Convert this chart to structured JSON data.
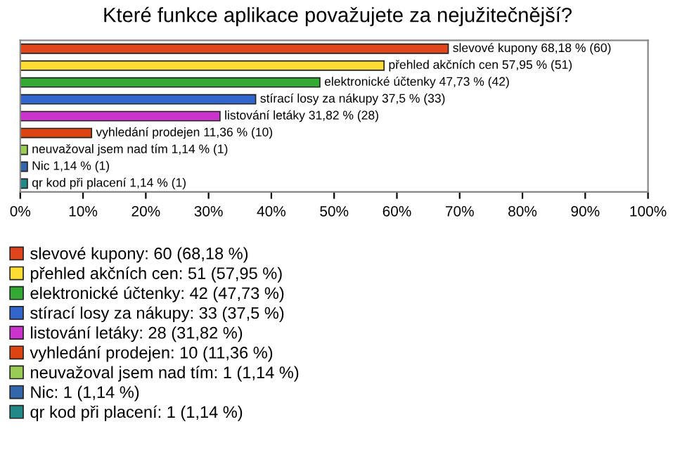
{
  "chart_data": {
    "type": "bar",
    "orientation": "horizontal",
    "title": "Které funkce aplikace považujete za nejužitečnější?",
    "categories": [
      null,
      null,
      null,
      null,
      null,
      null,
      null,
      null,
      null
    ],
    "series": [
      {
        "name": "slevové kupony: 60 (68,18 %)",
        "color": "#e0451c",
        "values": [
          68.18,
          null,
          null,
          null,
          null,
          null,
          null,
          null,
          null
        ],
        "value_labels": [
          "slevové kupony 68,18 % (60)",
          null,
          null,
          null,
          null,
          null,
          null,
          null,
          null
        ]
      },
      {
        "name": "přehled akčních cen: 51 (57,95 %)",
        "color": "#ffdd33",
        "values": [
          null,
          57.95,
          null,
          null,
          null,
          null,
          null,
          null,
          null
        ],
        "value_labels": [
          null,
          "přehled akčních cen 57,95 % (51)",
          null,
          null,
          null,
          null,
          null,
          null,
          null
        ]
      },
      {
        "name": "elektronické účtenky: 42 (47,73 %)",
        "color": "#33aa33",
        "values": [
          null,
          null,
          47.73,
          null,
          null,
          null,
          null,
          null,
          null
        ],
        "value_labels": [
          null,
          null,
          "elektronické účtenky 47,73 % (42)",
          null,
          null,
          null,
          null,
          null,
          null
        ]
      },
      {
        "name": "stírací losy za nákupy: 33 (37,5 %)",
        "color": "#3366cc",
        "values": [
          null,
          null,
          null,
          37.5,
          null,
          null,
          null,
          null,
          null
        ],
        "value_labels": [
          null,
          null,
          null,
          "stírací losy za nákupy 37,5 % (33)",
          null,
          null,
          null,
          null,
          null
        ]
      },
      {
        "name": "listování letáky: 28 (31,82 %)",
        "color": "#cc33cc",
        "values": [
          null,
          null,
          null,
          null,
          31.82,
          null,
          null,
          null,
          null
        ],
        "value_labels": [
          null,
          null,
          null,
          null,
          "listování letáky 31,82 % (28)",
          null,
          null,
          null,
          null
        ]
      },
      {
        "name": "vyhledání prodejen: 10 (11,36 %)",
        "color": "#dd4411",
        "values": [
          null,
          null,
          null,
          null,
          null,
          11.36,
          null,
          null,
          null
        ],
        "value_labels": [
          null,
          null,
          null,
          null,
          null,
          "vyhledání prodejen 11,36 % (10)",
          null,
          null,
          null
        ]
      },
      {
        "name": "neuvažoval jsem nad tím: 1 (1,14 %)",
        "color": "#99cc55",
        "values": [
          null,
          null,
          null,
          null,
          null,
          null,
          1.14,
          null,
          null
        ],
        "value_labels": [
          null,
          null,
          null,
          null,
          null,
          null,
          "neuvažoval jsem nad tím 1,14 % (1)",
          null,
          null
        ]
      },
      {
        "name": "Nic: 1 (1,14 %)",
        "color": "#3366aa",
        "values": [
          null,
          null,
          null,
          null,
          null,
          null,
          null,
          1.14,
          null
        ],
        "value_labels": [
          null,
          null,
          null,
          null,
          null,
          null,
          null,
          "Nic 1,14 % (1)",
          null
        ]
      },
      {
        "name": "qr kod při placení: 1 (1,14 %)",
        "color": "#228888",
        "values": [
          null,
          null,
          null,
          null,
          null,
          null,
          null,
          null,
          1.14
        ],
        "value_labels": [
          null,
          null,
          null,
          null,
          null,
          null,
          null,
          null,
          "qr kod při placení 1,14 % (1)"
        ]
      }
    ],
    "xlim": [
      0,
      100
    ],
    "xticks": [
      {
        "value": 0,
        "label": "0%"
      },
      {
        "value": 10,
        "label": "10%"
      },
      {
        "value": 20,
        "label": "20%"
      },
      {
        "value": 30,
        "label": "30%"
      },
      {
        "value": 40,
        "label": "40%"
      },
      {
        "value": 50,
        "label": "50%"
      },
      {
        "value": 60,
        "label": "60%"
      },
      {
        "value": 70,
        "label": "70%"
      },
      {
        "value": 80,
        "label": "80%"
      },
      {
        "value": 90,
        "label": "90%"
      },
      {
        "value": 100,
        "label": "100%"
      }
    ],
    "legend": "bottom",
    "grid": false
  }
}
